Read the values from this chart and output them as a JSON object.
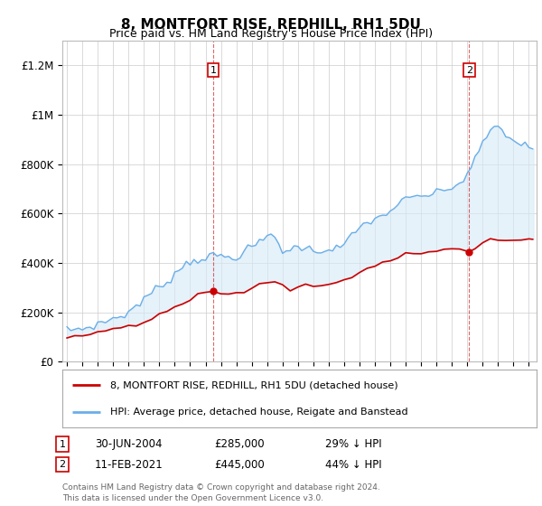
{
  "title": "8, MONTFORT RISE, REDHILL, RH1 5DU",
  "subtitle": "Price paid vs. HM Land Registry's House Price Index (HPI)",
  "ylabel_ticks": [
    "£0",
    "£200K",
    "£400K",
    "£600K",
    "£800K",
    "£1M",
    "£1.2M"
  ],
  "ytick_vals": [
    0,
    200000,
    400000,
    600000,
    800000,
    1000000,
    1200000
  ],
  "ylim": [
    0,
    1300000
  ],
  "xlim_start": 1994.7,
  "xlim_end": 2025.5,
  "hpi_color": "#6aaee8",
  "hpi_fill_color": "#d6eaf8",
  "price_color": "#cc0000",
  "sale1_date": 2004.49,
  "sale1_price": 285000,
  "sale2_date": 2021.12,
  "sale2_price": 445000,
  "legend_line1": "8, MONTFORT RISE, REDHILL, RH1 5DU (detached house)",
  "legend_line2": "HPI: Average price, detached house, Reigate and Banstead",
  "footnote": "Contains HM Land Registry data © Crown copyright and database right 2024.\nThis data is licensed under the Open Government Licence v3.0.",
  "background_color": "#ffffff",
  "grid_color": "#cccccc",
  "hpi_data": [
    [
      1995.0,
      128000
    ],
    [
      1995.25,
      130000
    ],
    [
      1995.5,
      131000
    ],
    [
      1995.75,
      133000
    ],
    [
      1996.0,
      135000
    ],
    [
      1996.25,
      138000
    ],
    [
      1996.5,
      140000
    ],
    [
      1996.75,
      145000
    ],
    [
      1997.0,
      153000
    ],
    [
      1997.25,
      158000
    ],
    [
      1997.5,
      163000
    ],
    [
      1997.75,
      170000
    ],
    [
      1998.0,
      175000
    ],
    [
      1998.25,
      180000
    ],
    [
      1998.5,
      185000
    ],
    [
      1998.75,
      190000
    ],
    [
      1999.0,
      200000
    ],
    [
      1999.25,
      215000
    ],
    [
      1999.5,
      228000
    ],
    [
      1999.75,
      238000
    ],
    [
      2000.0,
      250000
    ],
    [
      2000.25,
      268000
    ],
    [
      2000.5,
      280000
    ],
    [
      2000.75,
      292000
    ],
    [
      2001.0,
      305000
    ],
    [
      2001.25,
      315000
    ],
    [
      2001.5,
      325000
    ],
    [
      2001.75,
      338000
    ],
    [
      2002.0,
      355000
    ],
    [
      2002.25,
      372000
    ],
    [
      2002.5,
      385000
    ],
    [
      2002.75,
      398000
    ],
    [
      2003.0,
      405000
    ],
    [
      2003.25,
      410000
    ],
    [
      2003.5,
      415000
    ],
    [
      2003.75,
      418000
    ],
    [
      2004.0,
      420000
    ],
    [
      2004.25,
      425000
    ],
    [
      2004.5,
      428000
    ],
    [
      2004.75,
      430000
    ],
    [
      2005.0,
      428000
    ],
    [
      2005.25,
      425000
    ],
    [
      2005.5,
      422000
    ],
    [
      2005.75,
      420000
    ],
    [
      2006.0,
      425000
    ],
    [
      2006.25,
      435000
    ],
    [
      2006.5,
      445000
    ],
    [
      2006.75,
      455000
    ],
    [
      2007.0,
      465000
    ],
    [
      2007.25,
      475000
    ],
    [
      2007.5,
      480000
    ],
    [
      2007.75,
      490000
    ],
    [
      2008.0,
      510000
    ],
    [
      2008.25,
      515000
    ],
    [
      2008.5,
      505000
    ],
    [
      2008.75,
      480000
    ],
    [
      2009.0,
      450000
    ],
    [
      2009.25,
      445000
    ],
    [
      2009.5,
      450000
    ],
    [
      2009.75,
      460000
    ],
    [
      2010.0,
      470000
    ],
    [
      2010.25,
      465000
    ],
    [
      2010.5,
      460000
    ],
    [
      2010.75,
      455000
    ],
    [
      2011.0,
      450000
    ],
    [
      2011.25,
      448000
    ],
    [
      2011.5,
      450000
    ],
    [
      2011.75,
      455000
    ],
    [
      2012.0,
      455000
    ],
    [
      2012.25,
      458000
    ],
    [
      2012.5,
      460000
    ],
    [
      2012.75,
      465000
    ],
    [
      2013.0,
      475000
    ],
    [
      2013.25,
      490000
    ],
    [
      2013.5,
      510000
    ],
    [
      2013.75,
      525000
    ],
    [
      2014.0,
      540000
    ],
    [
      2014.25,
      555000
    ],
    [
      2014.5,
      565000
    ],
    [
      2014.75,
      572000
    ],
    [
      2015.0,
      575000
    ],
    [
      2015.25,
      582000
    ],
    [
      2015.5,
      590000
    ],
    [
      2015.75,
      600000
    ],
    [
      2016.0,
      612000
    ],
    [
      2016.25,
      625000
    ],
    [
      2016.5,
      638000
    ],
    [
      2016.75,
      648000
    ],
    [
      2017.0,
      655000
    ],
    [
      2017.25,
      660000
    ],
    [
      2017.5,
      665000
    ],
    [
      2017.75,
      668000
    ],
    [
      2018.0,
      670000
    ],
    [
      2018.25,
      672000
    ],
    [
      2018.5,
      675000
    ],
    [
      2018.75,
      678000
    ],
    [
      2019.0,
      682000
    ],
    [
      2019.25,
      690000
    ],
    [
      2019.5,
      695000
    ],
    [
      2019.75,
      700000
    ],
    [
      2020.0,
      705000
    ],
    [
      2020.25,
      710000
    ],
    [
      2020.5,
      720000
    ],
    [
      2020.75,
      740000
    ],
    [
      2021.0,
      760000
    ],
    [
      2021.25,
      790000
    ],
    [
      2021.5,
      820000
    ],
    [
      2021.75,
      850000
    ],
    [
      2022.0,
      880000
    ],
    [
      2022.25,
      910000
    ],
    [
      2022.5,
      940000
    ],
    [
      2022.75,
      950000
    ],
    [
      2023.0,
      945000
    ],
    [
      2023.25,
      935000
    ],
    [
      2023.5,
      920000
    ],
    [
      2023.75,
      905000
    ],
    [
      2024.0,
      895000
    ],
    [
      2024.25,
      888000
    ],
    [
      2024.5,
      880000
    ],
    [
      2024.75,
      875000
    ],
    [
      2025.0,
      870000
    ],
    [
      2025.25,
      868000
    ]
  ],
  "price_data": [
    [
      1995.0,
      100000
    ],
    [
      1995.5,
      102000
    ],
    [
      1996.0,
      105000
    ],
    [
      1996.5,
      108000
    ],
    [
      1997.0,
      115000
    ],
    [
      1997.5,
      122000
    ],
    [
      1998.0,
      128000
    ],
    [
      1998.5,
      133000
    ],
    [
      1999.0,
      140000
    ],
    [
      1999.5,
      150000
    ],
    [
      2000.0,
      163000
    ],
    [
      2000.5,
      178000
    ],
    [
      2001.0,
      192000
    ],
    [
      2001.5,
      205000
    ],
    [
      2002.0,
      218000
    ],
    [
      2002.5,
      232000
    ],
    [
      2003.0,
      248000
    ],
    [
      2003.5,
      265000
    ],
    [
      2004.0,
      278000
    ],
    [
      2004.49,
      285000
    ],
    [
      2005.0,
      280000
    ],
    [
      2005.5,
      268000
    ],
    [
      2006.0,
      275000
    ],
    [
      2006.5,
      285000
    ],
    [
      2007.0,
      298000
    ],
    [
      2007.5,
      315000
    ],
    [
      2008.0,
      328000
    ],
    [
      2008.5,
      325000
    ],
    [
      2009.0,
      305000
    ],
    [
      2009.5,
      295000
    ],
    [
      2010.0,
      300000
    ],
    [
      2010.5,
      305000
    ],
    [
      2011.0,
      308000
    ],
    [
      2011.5,
      310000
    ],
    [
      2012.0,
      312000
    ],
    [
      2012.5,
      318000
    ],
    [
      2013.0,
      330000
    ],
    [
      2013.5,
      348000
    ],
    [
      2014.0,
      365000
    ],
    [
      2014.5,
      378000
    ],
    [
      2015.0,
      388000
    ],
    [
      2015.5,
      398000
    ],
    [
      2016.0,
      410000
    ],
    [
      2016.5,
      422000
    ],
    [
      2017.0,
      432000
    ],
    [
      2017.5,
      438000
    ],
    [
      2018.0,
      442000
    ],
    [
      2018.5,
      445000
    ],
    [
      2019.0,
      448000
    ],
    [
      2019.5,
      452000
    ],
    [
      2020.0,
      455000
    ],
    [
      2020.5,
      458000
    ],
    [
      2021.12,
      445000
    ],
    [
      2021.5,
      460000
    ],
    [
      2022.0,
      475000
    ],
    [
      2022.5,
      488000
    ],
    [
      2023.0,
      492000
    ],
    [
      2023.5,
      488000
    ],
    [
      2024.0,
      490000
    ],
    [
      2024.5,
      495000
    ],
    [
      2025.0,
      500000
    ],
    [
      2025.25,
      498000
    ]
  ]
}
